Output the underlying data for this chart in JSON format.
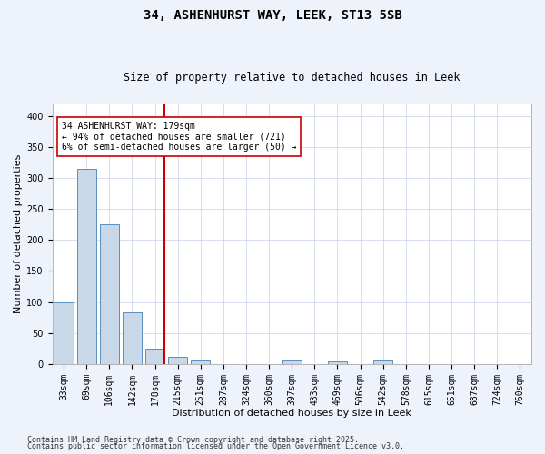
{
  "title_line1": "34, ASHENHURST WAY, LEEK, ST13 5SB",
  "title_line2": "Size of property relative to detached houses in Leek",
  "xlabel": "Distribution of detached houses by size in Leek",
  "ylabel": "Number of detached properties",
  "categories": [
    "33sqm",
    "69sqm",
    "106sqm",
    "142sqm",
    "178sqm",
    "215sqm",
    "251sqm",
    "287sqm",
    "324sqm",
    "360sqm",
    "397sqm",
    "433sqm",
    "469sqm",
    "506sqm",
    "542sqm",
    "578sqm",
    "615sqm",
    "651sqm",
    "687sqm",
    "724sqm",
    "760sqm"
  ],
  "values": [
    100,
    315,
    225,
    83,
    25,
    12,
    6,
    0,
    0,
    0,
    5,
    0,
    4,
    0,
    5,
    0,
    0,
    0,
    0,
    0,
    0
  ],
  "bar_color": "#c8d8e8",
  "bar_edge_color": "#5a8fc0",
  "ref_line_color": "#cc0000",
  "annotation_text": "34 ASHENHURST WAY: 179sqm\n← 94% of detached houses are smaller (721)\n6% of semi-detached houses are larger (50) →",
  "annotation_box_color": "#ffffff",
  "annotation_box_edge": "#cc0000",
  "ylim": [
    0,
    420
  ],
  "yticks": [
    0,
    50,
    100,
    150,
    200,
    250,
    300,
    350,
    400
  ],
  "footer_line1": "Contains HM Land Registry data © Crown copyright and database right 2025.",
  "footer_line2": "Contains public sector information licensed under the Open Government Licence v3.0.",
  "bg_color": "#eef2fb",
  "plot_bg_color": "#ffffff",
  "grid_color": "#c8d0e8",
  "title_fontsize": 10,
  "subtitle_fontsize": 8.5,
  "axis_label_fontsize": 8,
  "tick_fontsize": 7,
  "annotation_fontsize": 7,
  "footer_fontsize": 6
}
